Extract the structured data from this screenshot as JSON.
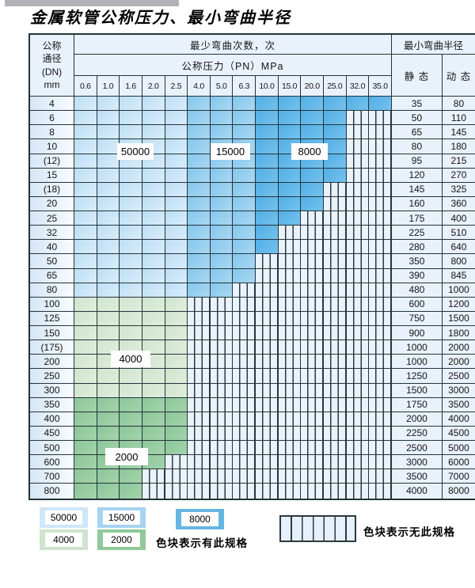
{
  "page": {
    "title": "金属软管公称压力、最小弯曲半径"
  },
  "table": {
    "corner_header": {
      "line1": "公称",
      "line2": "通径",
      "line3": "(DN)",
      "line4": "mm"
    },
    "bend_cycles_header": "最少弯曲次数，次",
    "pressure_header": "公称压力（PN）MPa",
    "radius_header": "最小弯曲半径",
    "static_header": "静 态",
    "dynamic_header": "动 态",
    "pressure_columns": [
      "0.6",
      "1.0",
      "1.6",
      "2.0",
      "2.5",
      "4.0",
      "5.0",
      "6.3",
      "10.0",
      "15.0",
      "20.0",
      "25.0",
      "32.0",
      "35.0"
    ],
    "rows": [
      {
        "dn": "4",
        "static": "35",
        "dynamic": "80",
        "fill": "blue",
        "through": 13
      },
      {
        "dn": "6",
        "static": "50",
        "dynamic": "110",
        "fill": "blue",
        "through": 11
      },
      {
        "dn": "8",
        "static": "65",
        "dynamic": "145",
        "fill": "blue",
        "through": 11
      },
      {
        "dn": "10",
        "static": "80",
        "dynamic": "180",
        "fill": "blue",
        "through": 11
      },
      {
        "dn": "(12)",
        "static": "95",
        "dynamic": "215",
        "fill": "blue",
        "through": 11
      },
      {
        "dn": "15",
        "static": "120",
        "dynamic": "270",
        "fill": "blue",
        "through": 11
      },
      {
        "dn": "(18)",
        "static": "145",
        "dynamic": "325",
        "fill": "blue",
        "through": 10
      },
      {
        "dn": "20",
        "static": "160",
        "dynamic": "360",
        "fill": "blue",
        "through": 10
      },
      {
        "dn": "25",
        "static": "175",
        "dynamic": "400",
        "fill": "blue",
        "through": 9
      },
      {
        "dn": "32",
        "static": "225",
        "dynamic": "510",
        "fill": "blue",
        "through": 8
      },
      {
        "dn": "40",
        "static": "280",
        "dynamic": "640",
        "fill": "blue",
        "through": 8
      },
      {
        "dn": "50",
        "static": "350",
        "dynamic": "800",
        "fill": "blue",
        "through": 7
      },
      {
        "dn": "65",
        "static": "390",
        "dynamic": "845",
        "fill": "blue",
        "through": 7
      },
      {
        "dn": "80",
        "static": "480",
        "dynamic": "1000",
        "fill": "blue",
        "through": 6
      },
      {
        "dn": "100",
        "static": "600",
        "dynamic": "1200",
        "fill": "g4",
        "through": 4
      },
      {
        "dn": "125",
        "static": "750",
        "dynamic": "1500",
        "fill": "g4",
        "through": 4
      },
      {
        "dn": "150",
        "static": "900",
        "dynamic": "1800",
        "fill": "g4",
        "through": 4
      },
      {
        "dn": "(175)",
        "static": "1000",
        "dynamic": "2000",
        "fill": "g4",
        "through": 4
      },
      {
        "dn": "200",
        "static": "1000",
        "dynamic": "2000",
        "fill": "g4",
        "through": 4
      },
      {
        "dn": "250",
        "static": "1250",
        "dynamic": "2500",
        "fill": "g4",
        "through": 4
      },
      {
        "dn": "300",
        "static": "1500",
        "dynamic": "3000",
        "fill": "g4",
        "through": 4
      },
      {
        "dn": "350",
        "static": "1750",
        "dynamic": "3500",
        "fill": "g2",
        "through": 4
      },
      {
        "dn": "400",
        "static": "2000",
        "dynamic": "4000",
        "fill": "g2",
        "through": 4
      },
      {
        "dn": "450",
        "static": "2250",
        "dynamic": "4500",
        "fill": "g2",
        "through": 4
      },
      {
        "dn": "500",
        "static": "2500",
        "dynamic": "5000",
        "fill": "g2",
        "through": 4
      },
      {
        "dn": "600",
        "static": "3000",
        "dynamic": "6000",
        "fill": "g2",
        "through": 3
      },
      {
        "dn": "700",
        "static": "3500",
        "dynamic": "7000",
        "fill": "g2",
        "through": 2
      },
      {
        "dn": "800",
        "static": "4000",
        "dynamic": "8000",
        "fill": "g2",
        "through": 2
      }
    ]
  },
  "overlay_labels": [
    {
      "text": "50000"
    },
    {
      "text": "15000"
    },
    {
      "text": "8000"
    },
    {
      "text": "4000"
    },
    {
      "text": "2000"
    }
  ],
  "legend": {
    "items": [
      {
        "label": "50000",
        "color": "#cfe7f7"
      },
      {
        "label": "15000",
        "color": "#a6d3ef"
      },
      {
        "label": "8000",
        "color": "#66b6e3"
      },
      {
        "label": "4000",
        "color": "#cfe4cd"
      },
      {
        "label": "2000",
        "color": "#90c99b"
      }
    ],
    "has_spec_note": "色块表示有此规格",
    "no_spec_note": "色块表示无此规格"
  },
  "colors": {
    "zone_50000": "#c7e2f6",
    "zone_15000": "#93cbee",
    "zone_8000": "#5eb3e6",
    "zone_4000": "#d5e8d3",
    "zone_2000": "#97cca2",
    "striped_bg": "#eaf2fb",
    "header_bg": "#e9f2fb",
    "border": "#24343c"
  }
}
